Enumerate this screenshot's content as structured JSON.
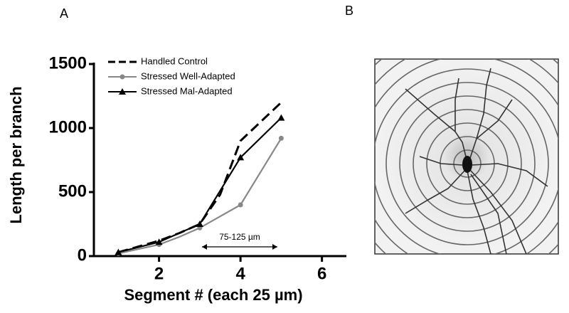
{
  "chart_data": {
    "type": "line",
    "panel_label": "A",
    "x_label": "Segment # (each 25 µm)",
    "y_label": "Length per branch",
    "x": [
      1,
      1.5,
      2,
      2.5,
      3,
      3.5,
      4,
      4.5,
      5
    ],
    "series": [
      {
        "name": "Handled Control",
        "color": "#000000",
        "dash": true,
        "marker": "none",
        "values": [
          30,
          75,
          120,
          180,
          250,
          480,
          900,
          1050,
          1200
        ]
      },
      {
        "name": "Stressed Well-Adapted",
        "color": "#888888",
        "dash": false,
        "marker": "circle",
        "values": [
          20,
          55,
          90,
          150,
          220,
          310,
          400,
          660,
          920
        ]
      },
      {
        "name": "Stressed Mal-Adapted",
        "color": "#000000",
        "dash": false,
        "marker": "triangle",
        "values": [
          30,
          70,
          110,
          180,
          250,
          510,
          770,
          925,
          1080
        ]
      }
    ],
    "annotation": "75-125 µm",
    "xlim": [
      0.4,
      6.6
    ],
    "xticks": [
      2,
      4,
      6
    ],
    "ylim": [
      0,
      1500
    ],
    "yticks": [
      0,
      500,
      1000,
      1500
    ],
    "grid": false,
    "legend": "upper left"
  },
  "panel_b": {
    "label": "B"
  }
}
